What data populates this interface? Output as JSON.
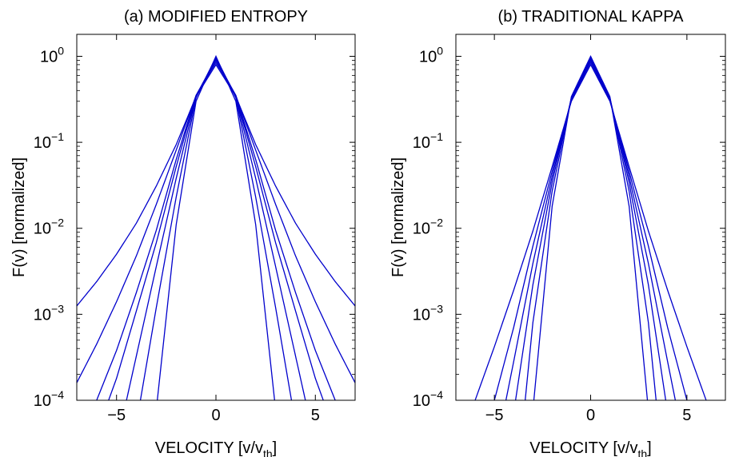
{
  "chart_data": [
    {
      "type": "line",
      "title": "(a) MODIFIED ENTROPY",
      "xlabel": "VELOCITY  [v/v",
      "xlabel_sub": "th",
      "xlabel_close": "]",
      "ylabel": "F(v)  [normalized]",
      "xlim": [
        -7,
        7
      ],
      "ylim": [
        0.0001,
        1.8
      ],
      "yscale": "log",
      "x_ticks": [
        "−5",
        "0",
        "5"
      ],
      "x_tick_values": [
        -5,
        0,
        5
      ],
      "y_tick_exponents": [
        "0",
        "−1",
        "−2",
        "−3",
        "−4"
      ],
      "y_tick_values": [
        1,
        0.1,
        0.01,
        0.001,
        0.0001
      ],
      "y_tick_base": "10",
      "line_color": "#0000cc",
      "grid": false,
      "series": [
        {
          "x": [
            -7,
            -6,
            -5,
            -4,
            -3,
            -2,
            -1,
            0,
            1,
            2,
            3,
            4,
            5,
            6,
            7
          ],
          "y": [
            0.00125,
            0.0024,
            0.005,
            0.0115,
            0.031,
            0.094,
            0.34,
            0.8,
            0.34,
            0.094,
            0.031,
            0.0115,
            0.005,
            0.0024,
            0.00125
          ]
        },
        {
          "x": [
            -7,
            -6,
            -5,
            -4,
            -3,
            -2,
            -1,
            0,
            1,
            2,
            3,
            4,
            5,
            6,
            7
          ],
          "y": [
            0.00016,
            0.00045,
            0.0014,
            0.0048,
            0.019,
            0.081,
            0.35,
            0.85,
            0.35,
            0.081,
            0.019,
            0.0048,
            0.0014,
            0.00045,
            0.00016
          ]
        },
        {
          "x": [
            -6,
            -5,
            -4,
            -3,
            -2,
            -1,
            0,
            1,
            2,
            3,
            4,
            5,
            6
          ],
          "y": [
            0.0001,
            0.00038,
            0.0018,
            0.0095,
            0.063,
            0.35,
            0.9,
            0.35,
            0.063,
            0.0095,
            0.0018,
            0.00038,
            0.0001
          ]
        },
        {
          "x": [
            -5.4,
            -5,
            -4,
            -3,
            -2,
            -1,
            0,
            1,
            2,
            3,
            4,
            5,
            5.4
          ],
          "y": [
            0.0001,
            0.00018,
            0.0011,
            0.0068,
            0.052,
            0.35,
            0.93,
            0.35,
            0.052,
            0.0068,
            0.0011,
            0.00018,
            0.0001
          ]
        },
        {
          "x": [
            -4.5,
            -4,
            -3,
            -2,
            -1,
            0,
            1,
            2,
            3,
            4,
            4.5
          ],
          "y": [
            0.0001,
            0.00033,
            0.0036,
            0.038,
            0.34,
            0.96,
            0.34,
            0.038,
            0.0036,
            0.00033,
            0.0001
          ]
        },
        {
          "x": [
            -3.8,
            -3,
            -2,
            -1,
            0,
            1,
            2,
            3,
            3.8
          ],
          "y": [
            0.0001,
            0.0012,
            0.023,
            0.33,
            0.98,
            0.33,
            0.023,
            0.0012,
            0.0001
          ]
        },
        {
          "x": [
            -2.95,
            -2,
            -1,
            0,
            1,
            2,
            2.95
          ],
          "y": [
            0.0001,
            0.011,
            0.3,
            1.0,
            0.3,
            0.011,
            0.0001
          ]
        }
      ]
    },
    {
      "type": "line",
      "title": "(b) TRADITIONAL KAPPA",
      "xlabel": "VELOCITY  [v/v",
      "xlabel_sub": "th",
      "xlabel_close": "]",
      "ylabel": "F(v)  [normalized]",
      "xlim": [
        -7,
        7
      ],
      "ylim": [
        0.0001,
        1.8
      ],
      "yscale": "log",
      "x_ticks": [
        "−5",
        "0",
        "5"
      ],
      "x_tick_values": [
        -5,
        0,
        5
      ],
      "y_tick_exponents": [
        "0",
        "−1",
        "−2",
        "−3",
        "−4"
      ],
      "y_tick_values": [
        1,
        0.1,
        0.01,
        0.001,
        0.0001
      ],
      "y_tick_base": "10",
      "line_color": "#0000cc",
      "grid": false,
      "series": [
        {
          "x": [
            -6.0,
            -5,
            -4,
            -3,
            -2,
            -1,
            0,
            1,
            2,
            3,
            4,
            5,
            6.0
          ],
          "y": [
            0.0001,
            0.00042,
            0.0019,
            0.0093,
            0.052,
            0.3,
            0.8,
            0.3,
            0.052,
            0.0093,
            0.0019,
            0.00042,
            0.0001
          ]
        },
        {
          "x": [
            -5.0,
            -4,
            -3,
            -2,
            -1,
            0,
            1,
            2,
            3,
            4,
            5.0
          ],
          "y": [
            0.0001,
            0.0007,
            0.0062,
            0.046,
            0.31,
            0.85,
            0.31,
            0.046,
            0.0062,
            0.0007,
            0.0001
          ]
        },
        {
          "x": [
            -4.4,
            -4,
            -3,
            -2,
            -1,
            0,
            1,
            2,
            3,
            4,
            4.4
          ],
          "y": [
            0.0001,
            0.00028,
            0.0039,
            0.04,
            0.32,
            0.9,
            0.32,
            0.04,
            0.0039,
            0.00028,
            0.0001
          ]
        },
        {
          "x": [
            -3.9,
            -3,
            -2,
            -1,
            0,
            1,
            2,
            3,
            3.9
          ],
          "y": [
            0.0001,
            0.0022,
            0.034,
            0.33,
            0.93,
            0.33,
            0.034,
            0.0022,
            0.0001
          ]
        },
        {
          "x": [
            -3.4,
            -3,
            -2,
            -1,
            0,
            1,
            2,
            3,
            3.4
          ],
          "y": [
            0.0001,
            0.0008,
            0.027,
            0.33,
            0.96,
            0.33,
            0.027,
            0.0008,
            0.0001
          ]
        },
        {
          "x": [
            -2.95,
            -2,
            -1,
            0,
            1,
            2,
            2.95
          ],
          "y": [
            0.0001,
            0.018,
            0.34,
            1.0,
            0.34,
            0.018,
            0.0001
          ]
        }
      ]
    }
  ]
}
